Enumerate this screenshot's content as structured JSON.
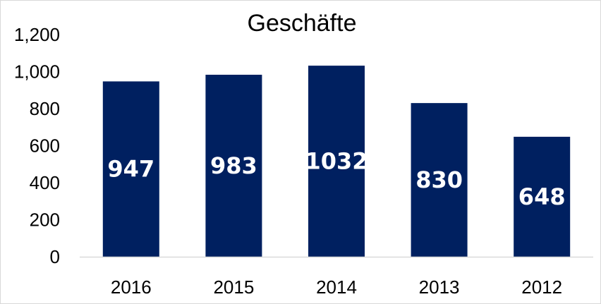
{
  "chart_data": {
    "type": "bar",
    "title": "Geschäfte",
    "categories": [
      "2016",
      "2015",
      "2014",
      "2013",
      "2012"
    ],
    "values": [
      947,
      983,
      1032,
      830,
      648
    ],
    "data_labels": [
      "947",
      "983",
      "1032",
      "830",
      "648"
    ],
    "ylim": [
      0,
      1200
    ],
    "yticks": [
      0,
      200,
      400,
      600,
      800,
      1000,
      1200
    ],
    "ytick_labels": [
      "0",
      "200",
      "400",
      "600",
      "800",
      "1,000",
      "1,200"
    ],
    "xlabel": "",
    "ylabel": "",
    "grid": false,
    "legend": "none",
    "bar_color": "#002060",
    "label_color": "#ffffff",
    "axis_color": "#d9d9d9"
  }
}
